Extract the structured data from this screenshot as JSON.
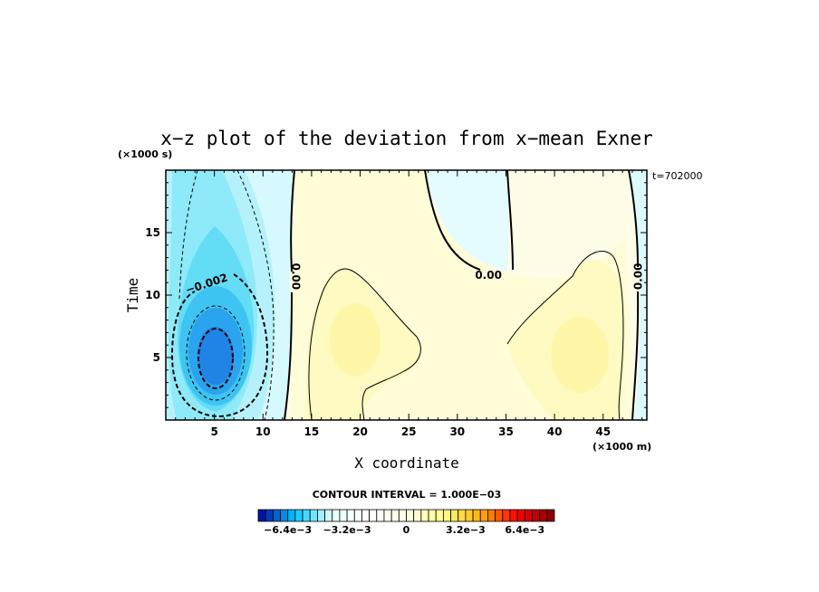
{
  "chart_data": {
    "type": "heatmap",
    "title": "x−z plot of the deviation from x−mean Exner",
    "xlabel": "X coordinate",
    "ylabel": "Time",
    "x_unit": "(×1000 m)",
    "y_unit": "(×1000 s)",
    "time_stamp": "t=702000",
    "xlim": [
      0,
      49.5
    ],
    "ylim": [
      0,
      20
    ],
    "x_ticks": [
      "5",
      "10",
      "15",
      "20",
      "25",
      "30",
      "35",
      "40",
      "45"
    ],
    "x_tick_values": [
      5,
      10,
      15,
      20,
      25,
      30,
      35,
      40,
      45
    ],
    "y_ticks": [
      "5",
      "10",
      "15"
    ],
    "y_tick_values": [
      5,
      10,
      15
    ],
    "contour_interval_text": "CONTOUR INTERVAL = 1.000E−03",
    "contour_labels": [
      {
        "text": "−0.002",
        "x": 4.2,
        "y": 10.9,
        "rot": -18
      },
      {
        "text": "0.00",
        "x": 13.4,
        "y": 11.5,
        "rot": 90
      },
      {
        "text": "0.00",
        "x": 33.2,
        "y": 11.6,
        "rot": 0
      },
      {
        "text": "0.00",
        "x": 48.6,
        "y": 11.5,
        "rot": -90
      }
    ],
    "colorbar": {
      "vmin": -0.008,
      "vmax": 0.008,
      "tick_labels": [
        "−6.4e−3",
        "−3.2e−3",
        "0",
        "3.2e−3",
        "6.4e−3"
      ],
      "tick_values": [
        -0.0064,
        -0.0032,
        0,
        0.0032,
        0.0064
      ],
      "colors": [
        "#0000a0",
        "#00c8ff",
        "#e6ffff",
        "#ffffff",
        "#fffae6",
        "#ffff8c",
        "#ffb400",
        "#ff0000",
        "#800000"
      ]
    }
  }
}
